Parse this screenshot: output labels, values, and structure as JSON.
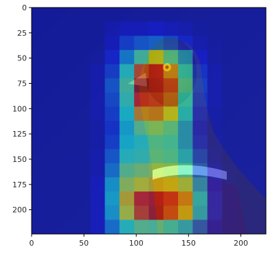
{
  "figure": {
    "image_description_icon": "pheasant-heatmap-image",
    "axes": {
      "xlim": [
        0,
        224
      ],
      "ylim": [
        224,
        0
      ],
      "x_ticks": [
        0,
        50,
        100,
        150,
        200
      ],
      "y_ticks": [
        0,
        25,
        50,
        75,
        100,
        125,
        150,
        175,
        200
      ]
    },
    "heatmap": {
      "grid_size": 16,
      "colormap": "jet",
      "values": [
        [
          0.05,
          0.05,
          0.05,
          0.05,
          0.05,
          0.05,
          0.05,
          0.05,
          0.05,
          0.05,
          0.05,
          0.05,
          0.05,
          0.05,
          0.05,
          0.05
        ],
        [
          0.05,
          0.05,
          0.05,
          0.05,
          0.05,
          0.08,
          0.1,
          0.1,
          0.12,
          0.1,
          0.08,
          0.06,
          0.05,
          0.05,
          0.05,
          0.05
        ],
        [
          0.05,
          0.05,
          0.05,
          0.05,
          0.05,
          0.1,
          0.18,
          0.22,
          0.24,
          0.2,
          0.14,
          0.08,
          0.06,
          0.05,
          0.05,
          0.05
        ],
        [
          0.05,
          0.05,
          0.05,
          0.05,
          0.06,
          0.14,
          0.28,
          0.45,
          0.62,
          0.45,
          0.3,
          0.12,
          0.06,
          0.05,
          0.05,
          0.05
        ],
        [
          0.05,
          0.05,
          0.05,
          0.05,
          0.08,
          0.18,
          0.4,
          0.8,
          0.88,
          0.72,
          0.4,
          0.16,
          0.08,
          0.05,
          0.05,
          0.05
        ],
        [
          0.05,
          0.05,
          0.05,
          0.05,
          0.08,
          0.22,
          0.45,
          0.96,
          0.9,
          0.82,
          0.45,
          0.18,
          0.08,
          0.05,
          0.05,
          0.05
        ],
        [
          0.05,
          0.05,
          0.05,
          0.05,
          0.08,
          0.2,
          0.42,
          0.86,
          0.84,
          0.76,
          0.4,
          0.16,
          0.08,
          0.05,
          0.05,
          0.05
        ],
        [
          0.05,
          0.05,
          0.05,
          0.05,
          0.08,
          0.18,
          0.38,
          0.72,
          0.74,
          0.62,
          0.36,
          0.14,
          0.07,
          0.05,
          0.05,
          0.05
        ],
        [
          0.05,
          0.05,
          0.05,
          0.05,
          0.07,
          0.16,
          0.34,
          0.48,
          0.52,
          0.46,
          0.3,
          0.12,
          0.06,
          0.05,
          0.05,
          0.05
        ],
        [
          0.05,
          0.05,
          0.05,
          0.05,
          0.07,
          0.18,
          0.36,
          0.4,
          0.44,
          0.42,
          0.3,
          0.14,
          0.07,
          0.05,
          0.05,
          0.05
        ],
        [
          0.05,
          0.05,
          0.05,
          0.05,
          0.08,
          0.22,
          0.4,
          0.42,
          0.46,
          0.44,
          0.34,
          0.18,
          0.08,
          0.05,
          0.05,
          0.05
        ],
        [
          0.05,
          0.05,
          0.05,
          0.05,
          0.08,
          0.26,
          0.48,
          0.52,
          0.56,
          0.54,
          0.44,
          0.22,
          0.1,
          0.06,
          0.05,
          0.05
        ],
        [
          0.05,
          0.05,
          0.05,
          0.05,
          0.1,
          0.32,
          0.56,
          0.62,
          0.66,
          0.64,
          0.56,
          0.3,
          0.12,
          0.06,
          0.05,
          0.05
        ],
        [
          0.05,
          0.05,
          0.05,
          0.05,
          0.1,
          0.34,
          0.66,
          0.86,
          0.9,
          0.84,
          0.72,
          0.36,
          0.14,
          0.06,
          0.05,
          0.05
        ],
        [
          0.05,
          0.05,
          0.05,
          0.05,
          0.1,
          0.32,
          0.6,
          0.82,
          0.92,
          0.8,
          0.66,
          0.34,
          0.14,
          0.06,
          0.05,
          0.05
        ],
        [
          0.05,
          0.05,
          0.05,
          0.05,
          0.1,
          0.26,
          0.4,
          0.48,
          0.46,
          0.4,
          0.34,
          0.22,
          0.1,
          0.06,
          0.05,
          0.05
        ]
      ]
    }
  }
}
